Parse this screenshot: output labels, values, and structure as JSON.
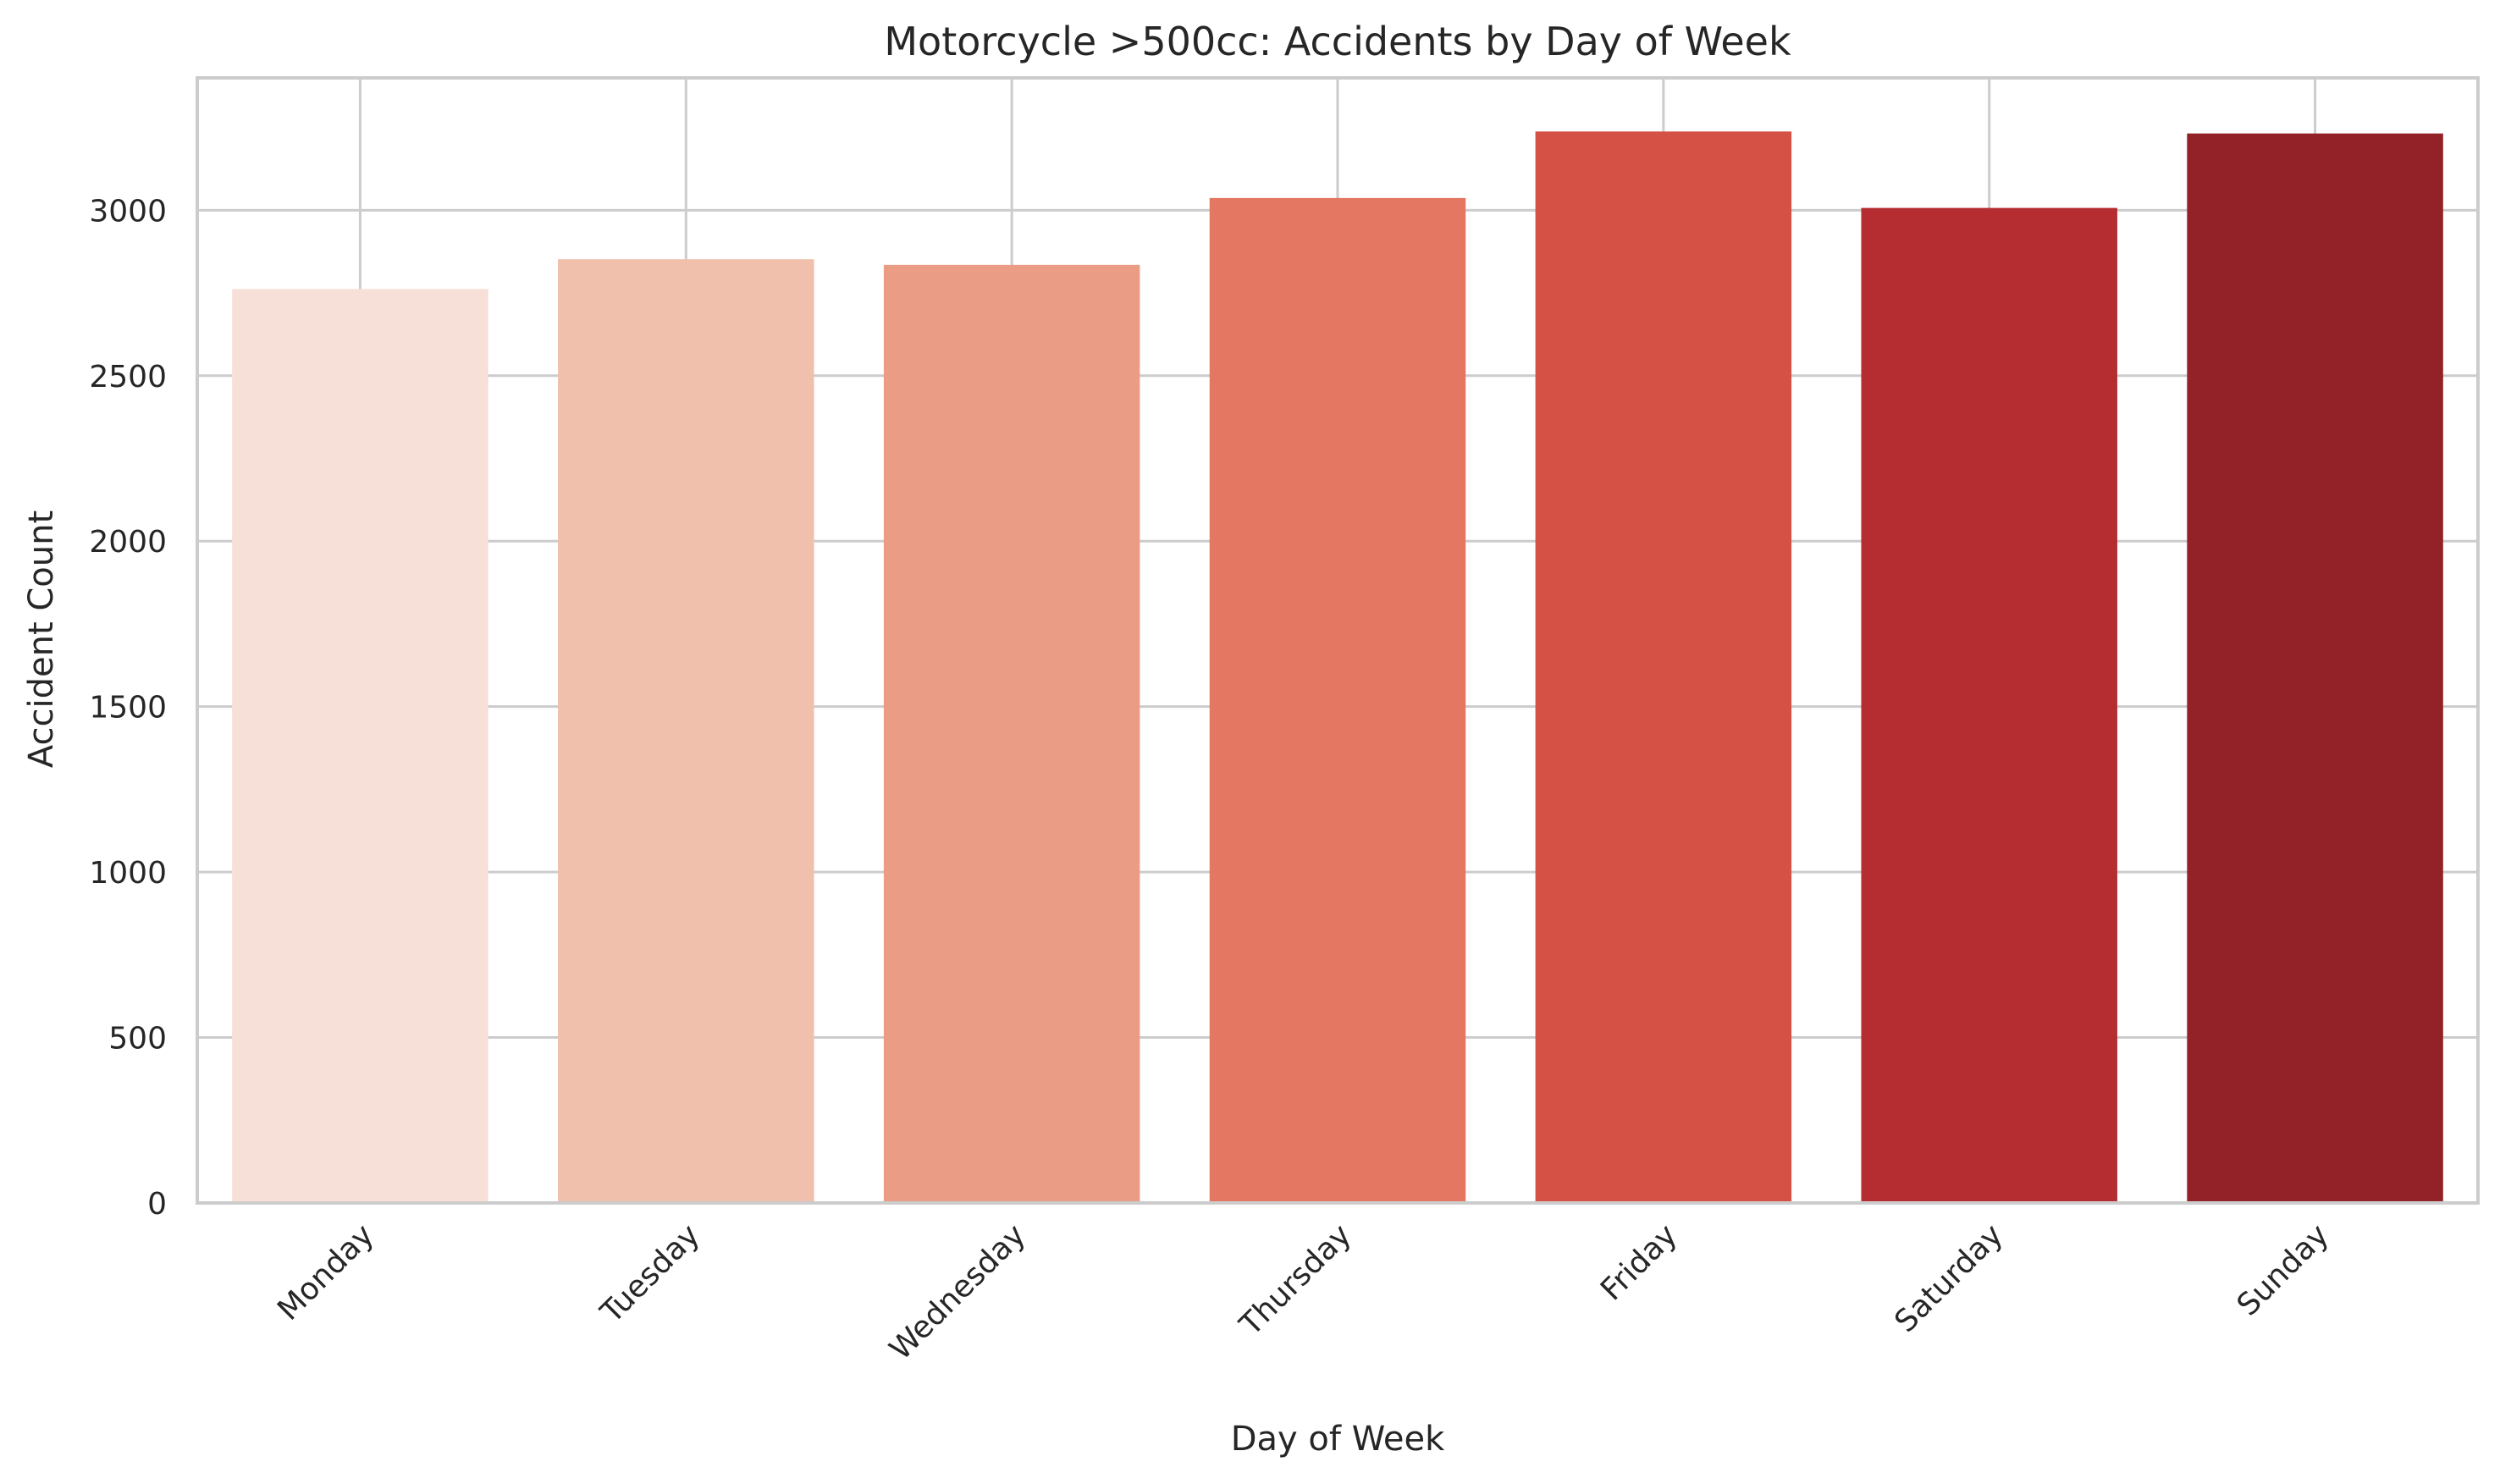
{
  "chart_data": {
    "type": "bar",
    "title": "Motorcycle >500cc: Accidents by Day of Week",
    "xlabel": "Day of Week",
    "ylabel": "Accident Count",
    "categories": [
      "Monday",
      "Tuesday",
      "Wednesday",
      "Thursday",
      "Friday",
      "Saturday",
      "Sunday"
    ],
    "values": [
      2762,
      2852,
      2835,
      3037,
      3238,
      3007,
      3232
    ],
    "colors": [
      "#f7e0d7",
      "#f0c0ad",
      "#ea9c85",
      "#e37762",
      "#d55045",
      "#b52d31",
      "#922228"
    ],
    "ylim": [
      0,
      3400
    ],
    "yticks": [
      0,
      500,
      1000,
      1500,
      2000,
      2500,
      3000
    ],
    "ytick_labels": [
      "0",
      "500",
      "1000",
      "1500",
      "2000",
      "2500",
      "3000"
    ],
    "grid": true,
    "legend": false
  }
}
